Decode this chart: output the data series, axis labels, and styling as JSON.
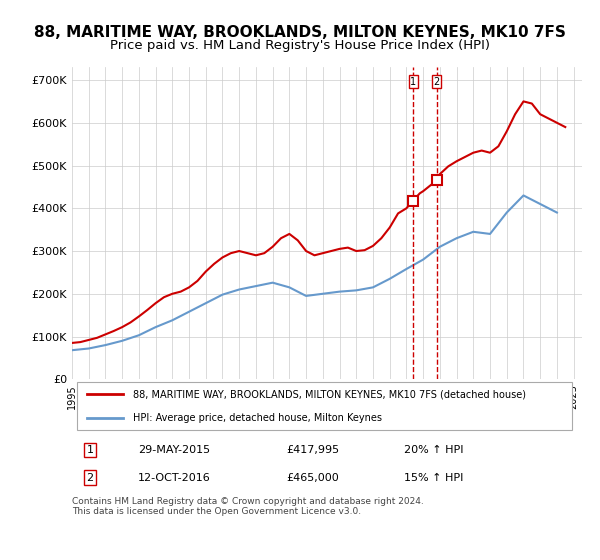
{
  "title": "88, MARITIME WAY, BROOKLANDS, MILTON KEYNES, MK10 7FS",
  "subtitle": "Price paid vs. HM Land Registry's House Price Index (HPI)",
  "title_fontsize": 11,
  "subtitle_fontsize": 9.5,
  "ylabel_ticks": [
    "£0",
    "£100K",
    "£200K",
    "£300K",
    "£400K",
    "£500K",
    "£600K",
    "£700K"
  ],
  "ytick_vals": [
    0,
    100000,
    200000,
    300000,
    400000,
    500000,
    600000,
    700000
  ],
  "ylim": [
    0,
    730000
  ],
  "xlim_start": 1995.0,
  "xlim_end": 2025.5,
  "hpi_color": "#6699cc",
  "price_color": "#cc0000",
  "marker1_color": "#cc0000",
  "marker2_color": "#cc0000",
  "vline1_x": 2015.4,
  "vline2_x": 2016.8,
  "marker1_y": 417995,
  "marker2_y": 465000,
  "legend_label1": "88, MARITIME WAY, BROOKLANDS, MILTON KEYNES, MK10 7FS (detached house)",
  "legend_label2": "HPI: Average price, detached house, Milton Keynes",
  "table_row1": [
    "1",
    "29-MAY-2015",
    "£417,995",
    "20% ↑ HPI"
  ],
  "table_row2": [
    "2",
    "12-OCT-2016",
    "£465,000",
    "15% ↑ HPI"
  ],
  "footnote": "Contains HM Land Registry data © Crown copyright and database right 2024.\nThis data is licensed under the Open Government Licence v3.0.",
  "xtick_years": [
    1995,
    1996,
    1997,
    1998,
    1999,
    2000,
    2001,
    2002,
    2003,
    2004,
    2005,
    2006,
    2007,
    2008,
    2009,
    2010,
    2011,
    2012,
    2013,
    2014,
    2015,
    2016,
    2017,
    2018,
    2019,
    2020,
    2021,
    2022,
    2023,
    2024,
    2025
  ],
  "hpi_years": [
    1995,
    1996,
    1997,
    1998,
    1999,
    2000,
    2001,
    2002,
    2003,
    2004,
    2005,
    2006,
    2007,
    2008,
    2009,
    2010,
    2011,
    2012,
    2013,
    2014,
    2015,
    2016,
    2017,
    2018,
    2019,
    2020,
    2021,
    2022,
    2023,
    2024
  ],
  "hpi_values": [
    68000,
    72000,
    80000,
    90000,
    103000,
    122000,
    138000,
    158000,
    178000,
    198000,
    210000,
    218000,
    226000,
    215000,
    195000,
    200000,
    205000,
    208000,
    215000,
    235000,
    258000,
    280000,
    310000,
    330000,
    345000,
    340000,
    390000,
    430000,
    410000,
    390000
  ],
  "price_years": [
    1995.0,
    1995.5,
    1996.0,
    1996.5,
    1997.0,
    1997.5,
    1998.0,
    1998.5,
    1999.0,
    1999.5,
    2000.0,
    2000.5,
    2001.0,
    2001.5,
    2002.0,
    2002.5,
    2003.0,
    2003.5,
    2004.0,
    2004.5,
    2005.0,
    2005.5,
    2006.0,
    2006.5,
    2007.0,
    2007.5,
    2008.0,
    2008.5,
    2009.0,
    2009.5,
    2010.0,
    2010.5,
    2011.0,
    2011.5,
    2012.0,
    2012.5,
    2013.0,
    2013.5,
    2014.0,
    2014.5,
    2015.0,
    2015.4,
    2015.8,
    2016.0,
    2016.8,
    2017.0,
    2017.5,
    2018.0,
    2018.5,
    2019.0,
    2019.5,
    2020.0,
    2020.5,
    2021.0,
    2021.5,
    2022.0,
    2022.5,
    2023.0,
    2023.5,
    2024.0,
    2024.5
  ],
  "price_values": [
    85000,
    87000,
    92000,
    97000,
    105000,
    113000,
    122000,
    133000,
    147000,
    162000,
    178000,
    192000,
    200000,
    205000,
    215000,
    230000,
    252000,
    270000,
    285000,
    295000,
    300000,
    295000,
    290000,
    295000,
    310000,
    330000,
    340000,
    325000,
    300000,
    290000,
    295000,
    300000,
    305000,
    308000,
    300000,
    302000,
    312000,
    330000,
    355000,
    388000,
    400000,
    417995,
    435000,
    440000,
    465000,
    480000,
    498000,
    510000,
    520000,
    530000,
    535000,
    530000,
    545000,
    580000,
    620000,
    650000,
    645000,
    620000,
    610000,
    600000,
    590000
  ]
}
